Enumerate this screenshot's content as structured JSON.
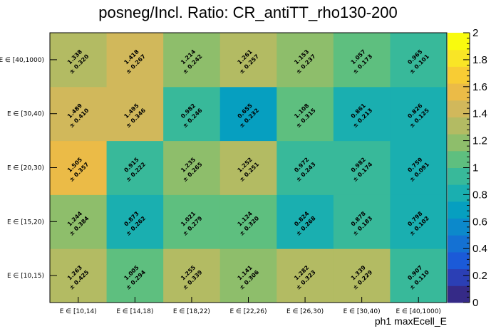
{
  "chart_data": {
    "type": "heatmap",
    "title": "posneg/Incl. Ratio: CR_antiTT_rho130-200",
    "xlabel": "ph1 maxEcell_E",
    "ylabel": "",
    "x_categories": [
      "E ∈ [10,14)",
      "E ∈ [14,18)",
      "E ∈ [18,22)",
      "E ∈ [22,26)",
      "E ∈ [26,30)",
      "E ∈ [30,40)",
      "E ∈ [40,1000)"
    ],
    "y_categories": [
      "E ∈ [10,15)",
      "E ∈ [15,20)",
      "E ∈ [20,30)",
      "E ∈ [30,40)",
      "E ∈ [40,1000)"
    ],
    "zlim": [
      0,
      2
    ],
    "z_ticks": [
      "0",
      "0.2",
      "0.4",
      "0.6",
      "0.8",
      "1",
      "1.2",
      "1.4",
      "1.6",
      "1.8",
      "2"
    ],
    "values": [
      [
        "1.263",
        "1.005",
        "1.255",
        "1.141",
        "1.282",
        "1.339",
        "0.907"
      ],
      [
        "1.244",
        "0.873",
        "1.021",
        "1.124",
        "0.824",
        "0.878",
        "0.798"
      ],
      [
        "1.505",
        "0.915",
        "1.235",
        "1.252",
        "0.972",
        "0.982",
        "0.759"
      ],
      [
        "1.489",
        "1.495",
        "0.982",
        "0.655",
        "1.108",
        "0.861",
        "0.826"
      ],
      [
        "1.338",
        "1.418",
        "1.214",
        "1.261",
        "1.153",
        "1.057",
        "0.965"
      ]
    ],
    "errors": [
      [
        "± 0.425",
        "± 0.294",
        "± 0.339",
        "± 0.306",
        "± 0.323",
        "± 0.229",
        "± 0.110"
      ],
      [
        "± 0.384",
        "± 0.262",
        "± 0.279",
        "± 0.320",
        "± 0.268",
        "± 0.183",
        "± 0.102"
      ],
      [
        "± 0.357",
        "± 0.222",
        "± 0.265",
        "± 0.251",
        "± 0.243",
        "± 0.174",
        "± 0.091"
      ],
      [
        "± 0.410",
        "± 0.346",
        "± 0.246",
        "± 0.232",
        "± 0.315",
        "± 0.213",
        "± 0.125"
      ],
      [
        "± 0.320",
        "± 0.267",
        "± 0.242",
        "± 0.257",
        "± 0.237",
        "± 0.173",
        "± 0.101"
      ]
    ]
  },
  "colors": {
    "palette": [
      "#352a87",
      "#2b3fb5",
      "#1b5ad8",
      "#1471d3",
      "#0c89cb",
      "#069fc0",
      "#1aafb0",
      "#38b99a",
      "#5ebf7f",
      "#8ebe6b",
      "#b3bb63",
      "#d1b85b",
      "#ebbb47",
      "#f8cc34",
      "#f9e526",
      "#f9fb0e"
    ],
    "border": "#000000"
  }
}
